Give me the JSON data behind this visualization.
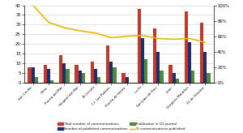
{
  "hospitals": [
    "San Cecilio",
    "Clínic",
    "Puerta del Mar",
    "Hospital del Mar",
    "A Coruña",
    "C.I. Las Palmas",
    "Puerta de Hierro",
    "La Fe",
    "San Juan de Deu",
    "León",
    "Gregorio Marañón",
    "12 de Octubre"
  ],
  "total_comms": [
    8,
    9,
    14,
    9,
    11,
    19,
    5,
    38,
    28,
    9,
    37,
    31
  ],
  "published_comms": [
    8,
    7,
    10,
    6,
    7,
    11,
    3,
    23,
    16,
    5,
    21,
    16
  ],
  "q1_published": [
    3,
    1,
    7,
    5,
    3,
    8,
    0,
    12,
    6,
    2,
    6,
    5
  ],
  "pct_published": [
    100,
    78,
    71,
    67,
    64,
    58,
    60,
    61,
    57,
    56,
    57,
    52
  ],
  "bar_red": "#c0392b",
  "bar_navy": "#1f2d6e",
  "bar_green": "#4e8a3e",
  "line_color": "#e8b800",
  "bg_color": "#ffffff",
  "left_ylim": [
    0,
    40
  ],
  "right_ylim": [
    0,
    100
  ],
  "left_yticks": [
    0,
    5,
    10,
    15,
    20,
    25,
    30,
    35,
    40
  ],
  "right_yticks": [
    0,
    20,
    40,
    60,
    80,
    100
  ],
  "legend_labels": [
    "Total number of communications",
    "Number of published communications",
    "Publication in Q1 journal",
    "% communications published"
  ],
  "gridcolor": "#d0d0d0"
}
